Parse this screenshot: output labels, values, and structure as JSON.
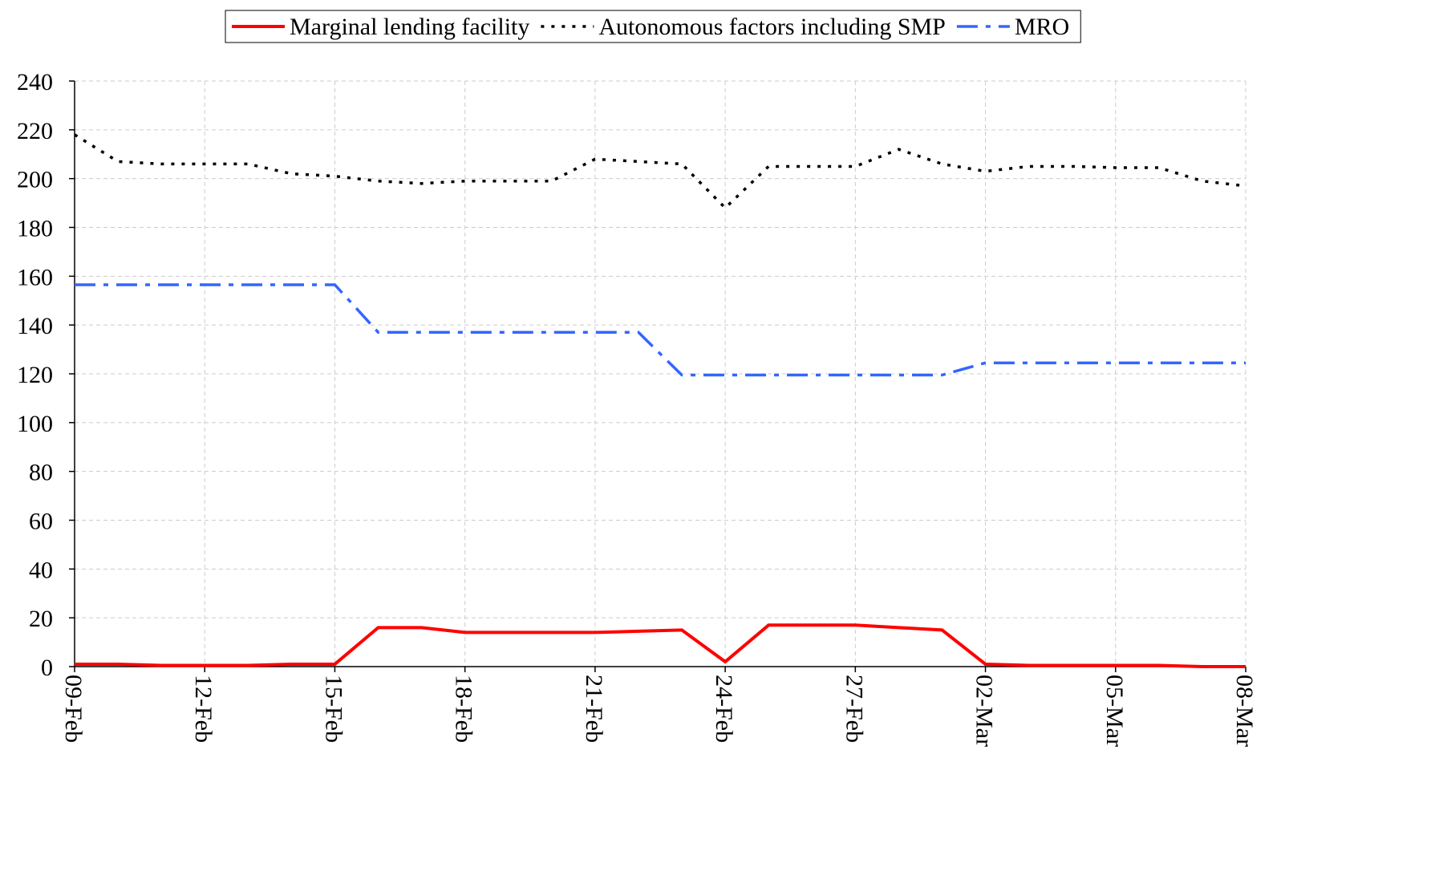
{
  "chart_data": {
    "type": "line",
    "categories": [
      "09-Feb",
      null,
      null,
      "12-Feb",
      null,
      null,
      "15-Feb",
      null,
      null,
      "18-Feb",
      null,
      null,
      "21-Feb",
      null,
      null,
      "24-Feb",
      null,
      null,
      "27-Feb",
      null,
      null,
      "02-Mar",
      null,
      null,
      "05-Mar",
      null,
      null,
      "08-Mar"
    ],
    "series": [
      {
        "name": "Marginal lending facility",
        "color": "#ff0000",
        "style": "solid",
        "values": [
          1,
          1,
          0.5,
          0.5,
          0.5,
          1,
          1,
          16,
          16,
          14,
          14,
          14,
          14,
          14.5,
          15,
          2,
          17,
          17,
          17,
          16,
          15,
          1,
          0.5,
          0.5,
          0.5,
          0.5,
          0,
          0
        ]
      },
      {
        "name": "Autonomous factors including SMP",
        "color": "#000000",
        "style": "dotted",
        "values": [
          218,
          207,
          206,
          206,
          206,
          202,
          201,
          199,
          198,
          199,
          199,
          199,
          208,
          207,
          206,
          188,
          205,
          205,
          205,
          212,
          206,
          203,
          205,
          205,
          204.5,
          204.5,
          199,
          197
        ]
      },
      {
        "name": "MRO",
        "color": "#3366ff",
        "style": "dashdot",
        "values": [
          156.5,
          156.5,
          156.5,
          156.5,
          156.5,
          156.5,
          156.5,
          137,
          137,
          137,
          137,
          137,
          137,
          137,
          119.5,
          119.5,
          119.5,
          119.5,
          119.5,
          119.5,
          119.5,
          124.5,
          124.5,
          124.5,
          124.5,
          124.5,
          124.5,
          124.5
        ]
      }
    ],
    "ylim": [
      0,
      240
    ],
    "yticks": [
      0,
      20,
      40,
      60,
      80,
      100,
      120,
      140,
      160,
      180,
      200,
      220,
      240
    ],
    "grid": true,
    "legend": "top"
  }
}
